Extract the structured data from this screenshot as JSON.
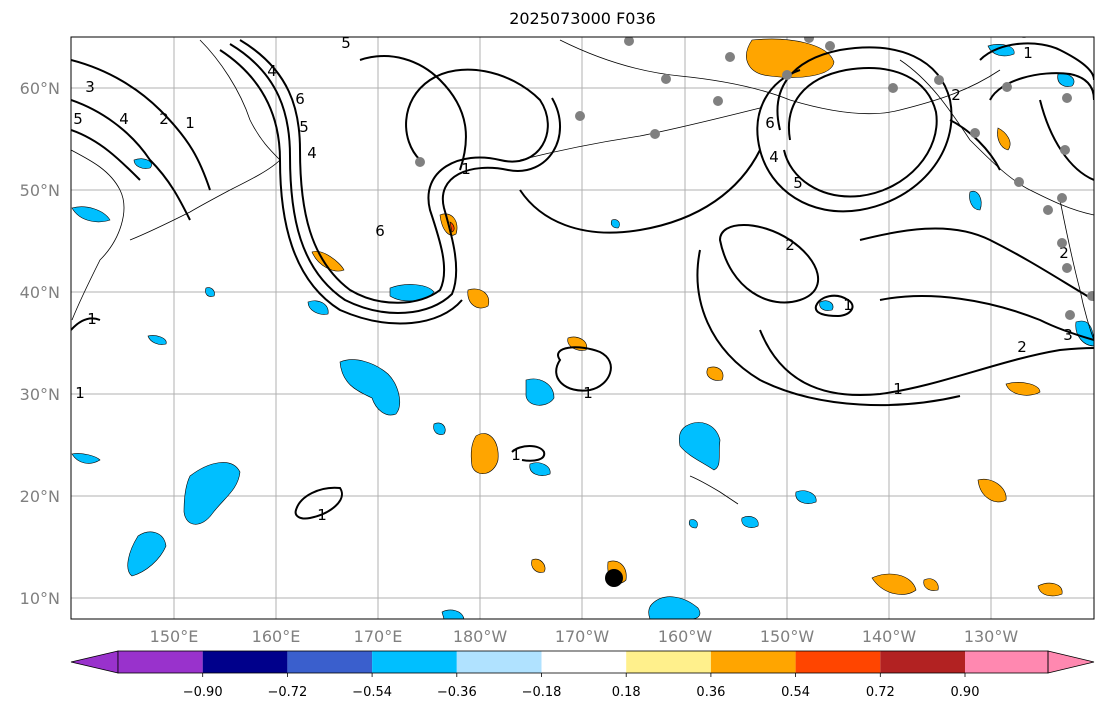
{
  "title": "2025073000 F036",
  "map": {
    "lat_labels": [
      "60°N",
      "50°N",
      "40°N",
      "30°N",
      "20°N",
      "10°N"
    ],
    "lon_labels": [
      "150°E",
      "160°E",
      "170°E",
      "180°W",
      "170°W",
      "160°W",
      "150°W",
      "140°W",
      "130°W"
    ],
    "contour_labels": [
      "1",
      "2",
      "3",
      "4",
      "5",
      "6"
    ],
    "colors": {
      "neg_strong": "#00bfff",
      "pos_mid": "#ffa500",
      "pos_high": "#ff4500",
      "station": "#808080",
      "marker": "#000000"
    }
  },
  "colorbar": {
    "ticks": [
      "−0.90",
      "−0.72",
      "−0.54",
      "−0.36",
      "−0.18",
      "0.18",
      "0.36",
      "0.54",
      "0.72",
      "0.90"
    ],
    "colors": [
      "#9932cc",
      "#00008b",
      "#3a5fcd",
      "#00bfff",
      "#b0e2ff",
      "#ffffff",
      "#fff08c",
      "#ffa500",
      "#ff4500",
      "#b22222",
      "#ff88b0"
    ]
  }
}
